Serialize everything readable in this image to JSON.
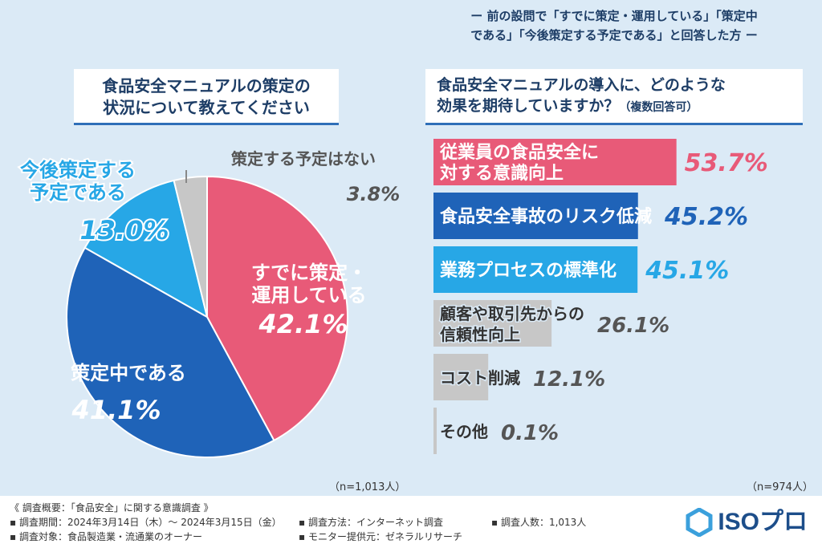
{
  "left_title": [
    "食品安全マニュアルの策定の",
    "状況について教えてください"
  ],
  "left_n": "（n=1,013人）",
  "right_note": [
    "ー 前の設問で「すでに策定・運用している」「策定中",
    "である」「今後策定する予定である」と回答した方 ー"
  ],
  "right_title": [
    "食品安全マニュアルの導入に、どのような",
    "効果を期待していますか？"
  ],
  "right_title_sub": "（複数回答可）",
  "right_n": "（n=974人）",
  "colors": {
    "pink": "#e85a78",
    "dark_blue": "#1f63b8",
    "light_blue": "#27a7e6",
    "gray": "#c7c7c7"
  },
  "chart_data": [
    {
      "type": "pie",
      "title": "食品安全マニュアルの策定の状況について教えてください",
      "slices": [
        {
          "label": "すでに策定・運用している",
          "value": 42.1,
          "color": "#e85a78",
          "label_lines": [
            "すでに策定・",
            "運用している"
          ],
          "value_text": "42.1%"
        },
        {
          "label": "策定中である",
          "value": 41.1,
          "color": "#1f63b8",
          "label_lines": [
            "策定中である"
          ],
          "value_text": "41.1%"
        },
        {
          "label": "今後策定する予定である",
          "value": 13.0,
          "color": "#27a7e6",
          "label_lines": [
            "今後策定する",
            "予定である"
          ],
          "value_text": "13.0%"
        },
        {
          "label": "策定する予定はない",
          "value": 3.8,
          "color": "#c7c7c7",
          "label_lines": [
            "策定する予定はない"
          ],
          "value_text": "3.8%"
        }
      ]
    },
    {
      "type": "bar",
      "orientation": "horizontal",
      "title": "食品安全マニュアルの導入に、どのような効果を期待していますか？（複数回答可）",
      "categories": [
        "従業員の食品安全に対する意識向上",
        "食品安全事故のリスク低減",
        "業務プロセスの標準化",
        "顧客や取引先からの信頼性向上",
        "コスト削減",
        "その他"
      ],
      "category_lines": [
        [
          "従業員の食品安全に",
          "対する意識向上"
        ],
        [
          "食品安全事故のリスク低減"
        ],
        [
          "業務プロセスの標準化"
        ],
        [
          "顧客や取引先からの",
          "信頼性向上"
        ],
        [
          "コスト削減"
        ],
        [
          "その他"
        ]
      ],
      "values": [
        53.7,
        45.2,
        45.1,
        26.1,
        12.1,
        0.1
      ],
      "value_texts": [
        "53.7%",
        "45.2%",
        "45.1%",
        "26.1%",
        "12.1%",
        "0.1%"
      ],
      "colors": [
        "#e85a78",
        "#1f63b8",
        "#27a7e6",
        "#c7c7c7",
        "#c7c7c7",
        "#c7c7c7"
      ],
      "value_colors": [
        "#e85a78",
        "#1f63b8",
        "#27a7e6",
        "#555555",
        "#555555",
        "#555555"
      ],
      "xlim": [
        0,
        55
      ]
    }
  ],
  "footer": {
    "summary": "《 調査概要：「食品安全」に関する意識調査 》",
    "period": "▪ 調査期間：2024年3月14日（木）〜 2024年3月15日（金）",
    "method": "▪ 調査方法：インターネット調査",
    "count": "▪ 調査人数：1,013人",
    "target": "▪ 調査対象：食品製造業・流通業のオーナー",
    "provider": "▪ モニター提供元：ゼネラルリサーチ"
  },
  "logo_text": "ISOプロ"
}
